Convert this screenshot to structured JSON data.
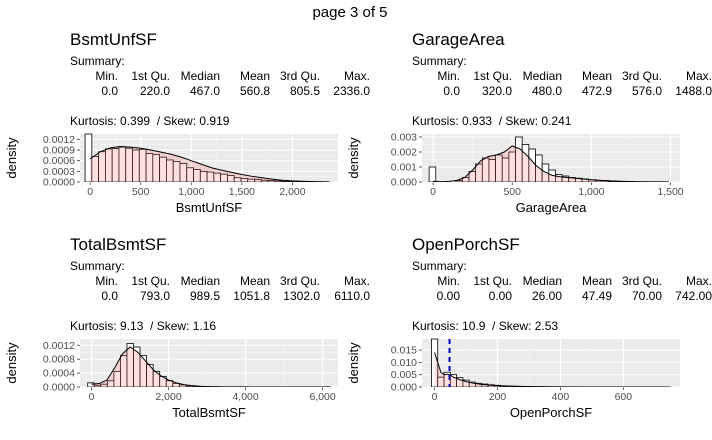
{
  "page_label": "page 3 of 5",
  "panels": [
    {
      "title": "BsmtUnfSF",
      "summary_label": "Summary:",
      "summary_headers": [
        "Min.",
        "1st Qu.",
        "Median",
        "Mean",
        "3rd Qu.",
        "Max."
      ],
      "summary_values": [
        "0.0",
        "220.0",
        "467.0",
        "560.8",
        "805.5",
        "2336.0"
      ],
      "kurtosis_text": "Kurtosis: 0.399  / Skew: 0.919",
      "chart_data": {
        "type": "histogram",
        "xlabel": "BsmtUnfSF",
        "ylabel": "density",
        "xlim": [
          -100,
          2450
        ],
        "ylim": [
          0,
          0.00135
        ],
        "xticks": [
          0,
          500,
          1000,
          1500,
          2000
        ],
        "xtick_labels": [
          "0",
          "500",
          "1,000",
          "1,500",
          "2,000"
        ],
        "yticks": [
          0,
          0.0003,
          0.0006,
          0.0009,
          0.0012
        ],
        "ytick_labels": [
          "0.0000",
          "0.0003",
          "0.0006",
          "0.0009",
          "0.0012"
        ],
        "bin_start": -50,
        "bin_width": 67,
        "bin_heights": [
          0.00135,
          0.00072,
          0.00085,
          0.00093,
          0.00094,
          0.00098,
          0.00095,
          0.0009,
          0.00092,
          0.0008,
          0.00077,
          0.0007,
          0.00062,
          0.00058,
          0.00052,
          0.0004,
          0.00035,
          0.0003,
          0.00028,
          0.00025,
          0.00022,
          0.00018,
          0.00012,
          0.0001,
          8e-05,
          7e-05,
          5e-05,
          4e-05,
          3e-05,
          2e-05,
          2e-05,
          1e-05,
          1e-05,
          1e-05,
          5e-06,
          5e-06
        ],
        "density_x": [
          0,
          100,
          200,
          300,
          400,
          500,
          600,
          700,
          800,
          900,
          1000,
          1100,
          1200,
          1300,
          1400,
          1500,
          1600,
          1700,
          1800,
          1900,
          2000,
          2100,
          2200,
          2336
        ],
        "density_y": [
          0.00065,
          0.00085,
          0.00096,
          0.001,
          0.00098,
          0.00095,
          0.0009,
          0.00084,
          0.00078,
          0.0007,
          0.0006,
          0.0005,
          0.0004,
          0.00033,
          0.00027,
          0.00021,
          0.00016,
          0.00012,
          8e-05,
          5e-05,
          3e-05,
          2e-05,
          1e-05,
          5e-06
        ],
        "mean_line": null
      }
    },
    {
      "title": "GarageArea",
      "summary_label": "Summary:",
      "summary_headers": [
        "Min.",
        "1st Qu.",
        "Median",
        "Mean",
        "3rd Qu.",
        "Max."
      ],
      "summary_values": [
        "0.0",
        "320.0",
        "480.0",
        "472.9",
        "576.0",
        "1488.0"
      ],
      "kurtosis_text": "Kurtosis: 0.933  / Skew: 0.241",
      "chart_data": {
        "type": "histogram",
        "xlabel": "GarageArea",
        "ylabel": "density",
        "xlim": [
          -70,
          1560
        ],
        "ylim": [
          0,
          0.0032
        ],
        "xticks": [
          0,
          500,
          1000,
          1500
        ],
        "xtick_labels": [
          "0",
          "500",
          "1,000",
          "1,500"
        ],
        "yticks": [
          0,
          0.001,
          0.002,
          0.003
        ],
        "ytick_labels": [
          "0.000",
          "0.001",
          "0.002",
          "0.003"
        ],
        "bin_start": -25,
        "bin_width": 42,
        "bin_heights": [
          0.001,
          0.0,
          0.0,
          0.0,
          0.0001,
          0.0003,
          0.0007,
          0.0012,
          0.0016,
          0.0015,
          0.0018,
          0.0016,
          0.002,
          0.003,
          0.0025,
          0.0022,
          0.0018,
          0.0012,
          0.0008,
          0.0005,
          0.0004,
          0.0003,
          0.00025,
          0.0002,
          0.00015,
          0.0001,
          0.0001,
          5e-05,
          5e-05,
          2e-05,
          2e-05,
          1e-05,
          1e-05,
          1e-05,
          1e-05,
          5e-06
        ],
        "density_x": [
          0,
          50,
          100,
          150,
          200,
          250,
          300,
          350,
          400,
          450,
          500,
          550,
          600,
          650,
          700,
          750,
          800,
          900,
          1000,
          1100,
          1200,
          1300,
          1400,
          1488
        ],
        "density_y": [
          5e-05,
          2e-05,
          4e-05,
          0.0001,
          0.0003,
          0.0008,
          0.0014,
          0.0017,
          0.0018,
          0.002,
          0.0024,
          0.0022,
          0.0017,
          0.0011,
          0.0007,
          0.00045,
          0.00035,
          0.00025,
          0.00015,
          8e-05,
          4e-05,
          2e-05,
          1e-05,
          5e-06
        ],
        "mean_line": null
      }
    },
    {
      "title": "TotalBsmtSF",
      "summary_label": "Summary:",
      "summary_headers": [
        "Min.",
        "1st Qu.",
        "Median",
        "Mean",
        "3rd Qu.",
        "Max."
      ],
      "summary_values": [
        "0.0",
        "793.0",
        "989.5",
        "1051.8",
        "1302.0",
        "6110.0"
      ],
      "kurtosis_text": "Kurtosis: 9.13  / Skew: 1.16",
      "chart_data": {
        "type": "histogram",
        "xlabel": "TotalBsmtSF",
        "ylabel": "density",
        "xlim": [
          -300,
          6400
        ],
        "ylim": [
          0,
          0.00138
        ],
        "xticks": [
          0,
          2000,
          4000,
          6000
        ],
        "xtick_labels": [
          "0",
          "2,000",
          "4,000",
          "6,000"
        ],
        "yticks": [
          0,
          0.0004,
          0.0008,
          0.0012
        ],
        "ytick_labels": [
          "0.0000",
          "0.0004",
          "0.0008",
          "0.0012"
        ],
        "bin_start": -100,
        "bin_width": 170,
        "bin_heights": [
          0.00012,
          5e-05,
          8e-05,
          0.00018,
          0.00045,
          0.0009,
          0.00125,
          0.00115,
          0.0009,
          0.00065,
          0.00045,
          0.0003,
          0.00018,
          0.0001,
          6e-05,
          3e-05,
          2e-05,
          1e-05,
          1e-05,
          5e-06,
          0.0,
          0.0,
          0.0,
          0.0,
          0.0,
          0.0,
          0.0,
          0.0,
          0.0,
          0.0,
          0.0,
          0.0,
          0.0,
          0.0,
          0.0,
          0.0,
          5e-06
        ],
        "density_x": [
          0,
          200,
          400,
          600,
          800,
          1000,
          1200,
          1400,
          1600,
          1800,
          2000,
          2200,
          2400,
          2600,
          2800,
          3000,
          3500,
          4000,
          5000,
          6110
        ],
        "density_y": [
          8e-05,
          0.0001,
          0.0002,
          0.00055,
          0.00095,
          0.00115,
          0.001,
          0.00075,
          0.0005,
          0.00032,
          0.0002,
          0.00012,
          7e-05,
          4e-05,
          2e-05,
          1e-05,
          5e-06,
          2e-06,
          1e-06,
          1e-06
        ],
        "mean_line": null
      }
    },
    {
      "title": "OpenPorchSF",
      "summary_label": "Summary:",
      "summary_headers": [
        "Min.",
        "1st Qu.",
        "Median",
        "Mean",
        "3rd Qu.",
        "Max."
      ],
      "summary_values": [
        "0.00",
        "0.00",
        "26.00",
        "47.49",
        "70.00",
        "742.00"
      ],
      "kurtosis_text": "Kurtosis: 10.9  / Skew: 2.53",
      "chart_data": {
        "type": "histogram",
        "xlabel": "OpenPorchSF",
        "ylabel": "density",
        "xlim": [
          -40,
          780
        ],
        "ylim": [
          0,
          0.0195
        ],
        "xticks": [
          0,
          200,
          400,
          600
        ],
        "xtick_labels": [
          "0",
          "200",
          "400",
          "600"
        ],
        "yticks": [
          0,
          0.005,
          0.01,
          0.015
        ],
        "ytick_labels": [
          "0.000",
          "0.005",
          "0.010",
          "0.015"
        ],
        "bin_start": -10,
        "bin_width": 20,
        "bin_heights": [
          0.0195,
          0.004,
          0.006,
          0.005,
          0.0038,
          0.0028,
          0.002,
          0.0015,
          0.0012,
          0.0009,
          0.0007,
          0.0005,
          0.0004,
          0.0003,
          0.00025,
          0.0002,
          0.0001,
          0.0001,
          5e-05,
          3e-05,
          2e-05,
          2e-05,
          1e-05,
          1e-05,
          1e-05,
          0.0,
          0.0,
          0.0,
          0.0,
          0.0,
          0.0,
          0.0,
          0.0,
          0.0,
          0.0,
          0.0,
          0.0,
          5e-06
        ],
        "density_x": [
          0,
          10,
          20,
          30,
          40,
          50,
          60,
          80,
          100,
          120,
          150,
          200,
          250,
          300,
          400,
          500,
          742
        ],
        "density_y": [
          0.014,
          0.01,
          0.006,
          0.005,
          0.0052,
          0.0048,
          0.004,
          0.003,
          0.0022,
          0.0016,
          0.001,
          0.0005,
          0.0003,
          0.00015,
          5e-05,
          2e-05,
          5e-06
        ],
        "mean_line": 47.49
      }
    }
  ]
}
